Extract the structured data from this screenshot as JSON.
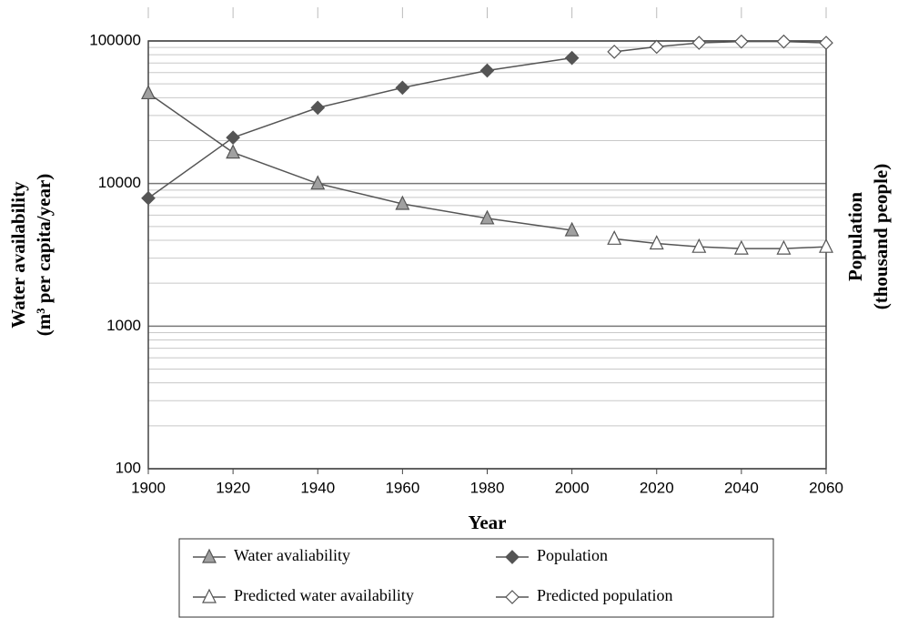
{
  "chart_data": {
    "type": "line",
    "x_label": "Year",
    "y_label": [
      "Water availability",
      "(m³ per capita/year)"
    ],
    "y2_label": [
      "Population",
      "(thousand people)"
    ],
    "xlim": [
      1900,
      2060
    ],
    "xticks": [
      1900,
      1920,
      1940,
      1960,
      1980,
      2000,
      2020,
      2040,
      2060
    ],
    "ylim": [
      100,
      100000
    ],
    "yticks": [
      100,
      1000,
      10000,
      100000
    ],
    "log": true,
    "grid": true,
    "line_color": "#555555",
    "series": [
      {
        "name": "Water avaliability",
        "color": "#a0a0a0",
        "marker": "triangle",
        "x": [
          1900,
          1920,
          1940,
          1960,
          1980,
          2000
        ],
        "values": [
          43000,
          16500,
          10000,
          7200,
          5700,
          4700
        ]
      },
      {
        "name": "Population",
        "color": "#555555",
        "marker": "diamond",
        "x": [
          1900,
          1920,
          1940,
          1960,
          1980,
          2000
        ],
        "values": [
          7900,
          21000,
          34000,
          47000,
          62000,
          76000
        ]
      },
      {
        "name": "Predicted water availability",
        "color": "#ffffff",
        "marker": "triangle",
        "x": [
          2010,
          2020,
          2030,
          2040,
          2050,
          2060
        ],
        "values": [
          4100,
          3800,
          3600,
          3500,
          3500,
          3600
        ]
      },
      {
        "name": "Predicted population",
        "color": "#ffffff",
        "marker": "diamond",
        "x": [
          2010,
          2020,
          2030,
          2040,
          2050,
          2060
        ],
        "values": [
          84000,
          91000,
          97000,
          99000,
          99000,
          97000
        ]
      }
    ]
  }
}
